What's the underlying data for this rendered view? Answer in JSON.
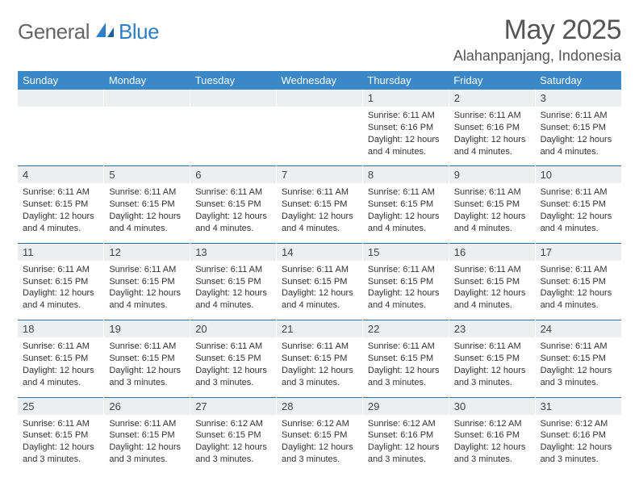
{
  "logo": {
    "word1": "General",
    "word2": "Blue"
  },
  "title": "May 2025",
  "location": "Alahanpanjang, Indonesia",
  "colors": {
    "header_bg": "#3a88c8",
    "daynum_bg": "#eceeef",
    "week_sep": "#2f6fa8",
    "logo_gray": "#666666",
    "logo_blue": "#2f7fc4",
    "text": "#333333",
    "title_color": "#555555"
  },
  "typography": {
    "month_title_size": 34,
    "location_size": 18,
    "dow_size": 13,
    "daynum_size": 13,
    "cell_size": 11
  },
  "day_names": [
    "Sunday",
    "Monday",
    "Tuesday",
    "Wednesday",
    "Thursday",
    "Friday",
    "Saturday"
  ],
  "weeks": [
    [
      null,
      null,
      null,
      null,
      {
        "n": "1",
        "sr": "Sunrise: 6:11 AM",
        "ss": "Sunset: 6:16 PM",
        "d1": "Daylight: 12 hours",
        "d2": "and 4 minutes."
      },
      {
        "n": "2",
        "sr": "Sunrise: 6:11 AM",
        "ss": "Sunset: 6:16 PM",
        "d1": "Daylight: 12 hours",
        "d2": "and 4 minutes."
      },
      {
        "n": "3",
        "sr": "Sunrise: 6:11 AM",
        "ss": "Sunset: 6:15 PM",
        "d1": "Daylight: 12 hours",
        "d2": "and 4 minutes."
      }
    ],
    [
      {
        "n": "4",
        "sr": "Sunrise: 6:11 AM",
        "ss": "Sunset: 6:15 PM",
        "d1": "Daylight: 12 hours",
        "d2": "and 4 minutes."
      },
      {
        "n": "5",
        "sr": "Sunrise: 6:11 AM",
        "ss": "Sunset: 6:15 PM",
        "d1": "Daylight: 12 hours",
        "d2": "and 4 minutes."
      },
      {
        "n": "6",
        "sr": "Sunrise: 6:11 AM",
        "ss": "Sunset: 6:15 PM",
        "d1": "Daylight: 12 hours",
        "d2": "and 4 minutes."
      },
      {
        "n": "7",
        "sr": "Sunrise: 6:11 AM",
        "ss": "Sunset: 6:15 PM",
        "d1": "Daylight: 12 hours",
        "d2": "and 4 minutes."
      },
      {
        "n": "8",
        "sr": "Sunrise: 6:11 AM",
        "ss": "Sunset: 6:15 PM",
        "d1": "Daylight: 12 hours",
        "d2": "and 4 minutes."
      },
      {
        "n": "9",
        "sr": "Sunrise: 6:11 AM",
        "ss": "Sunset: 6:15 PM",
        "d1": "Daylight: 12 hours",
        "d2": "and 4 minutes."
      },
      {
        "n": "10",
        "sr": "Sunrise: 6:11 AM",
        "ss": "Sunset: 6:15 PM",
        "d1": "Daylight: 12 hours",
        "d2": "and 4 minutes."
      }
    ],
    [
      {
        "n": "11",
        "sr": "Sunrise: 6:11 AM",
        "ss": "Sunset: 6:15 PM",
        "d1": "Daylight: 12 hours",
        "d2": "and 4 minutes."
      },
      {
        "n": "12",
        "sr": "Sunrise: 6:11 AM",
        "ss": "Sunset: 6:15 PM",
        "d1": "Daylight: 12 hours",
        "d2": "and 4 minutes."
      },
      {
        "n": "13",
        "sr": "Sunrise: 6:11 AM",
        "ss": "Sunset: 6:15 PM",
        "d1": "Daylight: 12 hours",
        "d2": "and 4 minutes."
      },
      {
        "n": "14",
        "sr": "Sunrise: 6:11 AM",
        "ss": "Sunset: 6:15 PM",
        "d1": "Daylight: 12 hours",
        "d2": "and 4 minutes."
      },
      {
        "n": "15",
        "sr": "Sunrise: 6:11 AM",
        "ss": "Sunset: 6:15 PM",
        "d1": "Daylight: 12 hours",
        "d2": "and 4 minutes."
      },
      {
        "n": "16",
        "sr": "Sunrise: 6:11 AM",
        "ss": "Sunset: 6:15 PM",
        "d1": "Daylight: 12 hours",
        "d2": "and 4 minutes."
      },
      {
        "n": "17",
        "sr": "Sunrise: 6:11 AM",
        "ss": "Sunset: 6:15 PM",
        "d1": "Daylight: 12 hours",
        "d2": "and 4 minutes."
      }
    ],
    [
      {
        "n": "18",
        "sr": "Sunrise: 6:11 AM",
        "ss": "Sunset: 6:15 PM",
        "d1": "Daylight: 12 hours",
        "d2": "and 4 minutes."
      },
      {
        "n": "19",
        "sr": "Sunrise: 6:11 AM",
        "ss": "Sunset: 6:15 PM",
        "d1": "Daylight: 12 hours",
        "d2": "and 3 minutes."
      },
      {
        "n": "20",
        "sr": "Sunrise: 6:11 AM",
        "ss": "Sunset: 6:15 PM",
        "d1": "Daylight: 12 hours",
        "d2": "and 3 minutes."
      },
      {
        "n": "21",
        "sr": "Sunrise: 6:11 AM",
        "ss": "Sunset: 6:15 PM",
        "d1": "Daylight: 12 hours",
        "d2": "and 3 minutes."
      },
      {
        "n": "22",
        "sr": "Sunrise: 6:11 AM",
        "ss": "Sunset: 6:15 PM",
        "d1": "Daylight: 12 hours",
        "d2": "and 3 minutes."
      },
      {
        "n": "23",
        "sr": "Sunrise: 6:11 AM",
        "ss": "Sunset: 6:15 PM",
        "d1": "Daylight: 12 hours",
        "d2": "and 3 minutes."
      },
      {
        "n": "24",
        "sr": "Sunrise: 6:11 AM",
        "ss": "Sunset: 6:15 PM",
        "d1": "Daylight: 12 hours",
        "d2": "and 3 minutes."
      }
    ],
    [
      {
        "n": "25",
        "sr": "Sunrise: 6:11 AM",
        "ss": "Sunset: 6:15 PM",
        "d1": "Daylight: 12 hours",
        "d2": "and 3 minutes."
      },
      {
        "n": "26",
        "sr": "Sunrise: 6:11 AM",
        "ss": "Sunset: 6:15 PM",
        "d1": "Daylight: 12 hours",
        "d2": "and 3 minutes."
      },
      {
        "n": "27",
        "sr": "Sunrise: 6:12 AM",
        "ss": "Sunset: 6:15 PM",
        "d1": "Daylight: 12 hours",
        "d2": "and 3 minutes."
      },
      {
        "n": "28",
        "sr": "Sunrise: 6:12 AM",
        "ss": "Sunset: 6:15 PM",
        "d1": "Daylight: 12 hours",
        "d2": "and 3 minutes."
      },
      {
        "n": "29",
        "sr": "Sunrise: 6:12 AM",
        "ss": "Sunset: 6:16 PM",
        "d1": "Daylight: 12 hours",
        "d2": "and 3 minutes."
      },
      {
        "n": "30",
        "sr": "Sunrise: 6:12 AM",
        "ss": "Sunset: 6:16 PM",
        "d1": "Daylight: 12 hours",
        "d2": "and 3 minutes."
      },
      {
        "n": "31",
        "sr": "Sunrise: 6:12 AM",
        "ss": "Sunset: 6:16 PM",
        "d1": "Daylight: 12 hours",
        "d2": "and 3 minutes."
      }
    ]
  ]
}
